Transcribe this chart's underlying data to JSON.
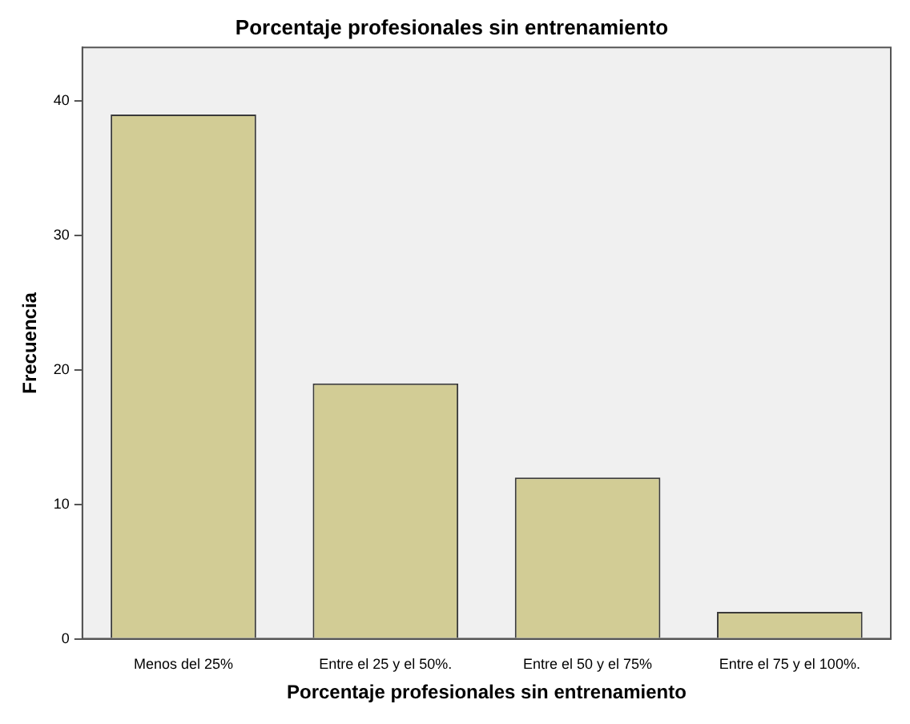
{
  "chart_data": {
    "type": "bar",
    "title": "Porcentaje profesionales sin entrenamiento",
    "xlabel": "Porcentaje profesionales sin entrenamiento",
    "ylabel": "Frecuencia",
    "categories": [
      "Menos del 25%",
      "Entre el 25 y el 50%.",
      "Entre el 50 y el 75%",
      "Entre el 75 y el 100%."
    ],
    "values": [
      39,
      19,
      12,
      2
    ],
    "color": "#d2cc95",
    "ylim": [
      0,
      44
    ],
    "yticks": [
      0,
      10,
      20,
      30,
      40
    ],
    "legend": false
  }
}
